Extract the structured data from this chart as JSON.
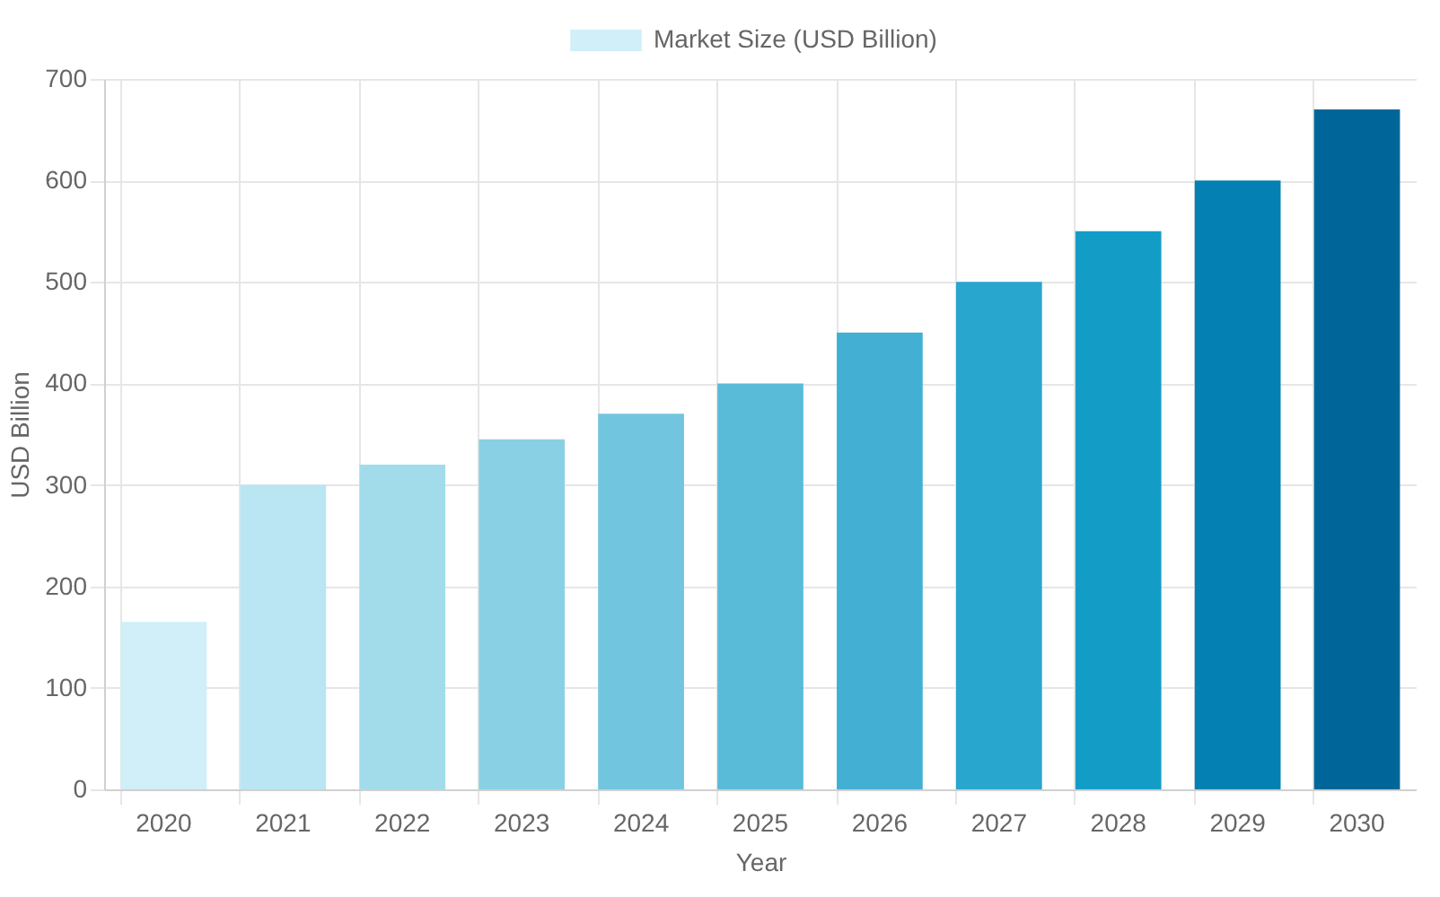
{
  "chart_data": {
    "type": "bar",
    "xlabel": "Year",
    "ylabel": "USD Billion",
    "categories": [
      "2020",
      "2021",
      "2022",
      "2023",
      "2024",
      "2025",
      "2026",
      "2027",
      "2028",
      "2029",
      "2030"
    ],
    "series": [
      {
        "name": "Market Size (USD Billion)",
        "values": [
          165,
          300,
          320,
          345,
          370,
          400,
          450,
          500,
          550,
          600,
          670
        ],
        "colors": [
          "#d0eff8",
          "#b9e6f2",
          "#a2dcea",
          "#8ad0e4",
          "#71c5df",
          "#59bbd8",
          "#42afd3",
          "#29a6ce",
          "#139cc6",
          "#0480b2",
          "#006699"
        ]
      }
    ],
    "ylim": [
      0,
      700
    ],
    "yticks": [
      0,
      100,
      200,
      300,
      400,
      500,
      600,
      700
    ],
    "grid": true,
    "legend": "top"
  }
}
